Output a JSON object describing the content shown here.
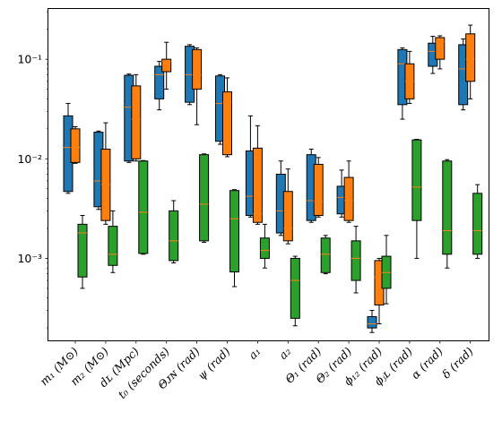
{
  "chart_data": {
    "type": "boxplot",
    "y_scale": "log",
    "ylim": [
      0.00015,
      0.32
    ],
    "y_ticks": [
      {
        "value": 0.001,
        "label": "10⁻³"
      },
      {
        "value": 0.01,
        "label": "10⁻²"
      },
      {
        "value": 0.1,
        "label": "10⁻¹"
      }
    ],
    "categories": [
      "m₁ (M⊙)",
      "m₂ (M⊙)",
      "dʟ (Mpc)",
      "t₀ (seconds)",
      "Θᴊɴ (rad)",
      "ψ (rad)",
      "a₁",
      "a₂",
      "Θ₁ (rad)",
      "Θ₂ (rad)",
      "ϕ₁₂ (rad)",
      "ϕⱼʟ (rad)",
      "α (rad)",
      "δ (rad)"
    ],
    "series": [
      {
        "color": "#1f77b4",
        "boxes": [
          {
            "whislo": 0.0045,
            "q1": 0.0047,
            "med": 0.013,
            "q3": 0.027,
            "whishi": 0.036
          },
          {
            "whislo": 0.0031,
            "q1": 0.0033,
            "med": 0.006,
            "q3": 0.0185,
            "whishi": 0.019
          },
          {
            "whislo": 0.0092,
            "q1": 0.0095,
            "med": 0.033,
            "q3": 0.069,
            "whishi": 0.071
          },
          {
            "whislo": 0.031,
            "q1": 0.04,
            "med": 0.07,
            "q3": 0.085,
            "whishi": 0.095
          },
          {
            "whislo": 0.035,
            "q1": 0.037,
            "med": 0.07,
            "q3": 0.135,
            "whishi": 0.14
          },
          {
            "whislo": 0.014,
            "q1": 0.015,
            "med": 0.036,
            "q3": 0.068,
            "whishi": 0.07
          },
          {
            "whislo": 0.0026,
            "q1": 0.0027,
            "med": 0.0042,
            "q3": 0.012,
            "whishi": 0.027
          },
          {
            "whislo": 0.0017,
            "q1": 0.0018,
            "med": 0.003,
            "q3": 0.007,
            "whishi": 0.0095
          },
          {
            "whislo": 0.0023,
            "q1": 0.0024,
            "med": 0.0038,
            "q3": 0.011,
            "whishi": 0.0125
          },
          {
            "whislo": 0.0026,
            "q1": 0.0028,
            "med": 0.0041,
            "q3": 0.0053,
            "whishi": 0.0077
          },
          {
            "whislo": 0.00018,
            "q1": 0.0002,
            "med": 0.00022,
            "q3": 0.00026,
            "whishi": 0.0003
          },
          {
            "whislo": 0.025,
            "q1": 0.035,
            "med": 0.09,
            "q3": 0.125,
            "whishi": 0.13
          },
          {
            "whislo": 0.072,
            "q1": 0.085,
            "med": 0.12,
            "q3": 0.145,
            "whishi": 0.17
          },
          {
            "whislo": 0.031,
            "q1": 0.035,
            "med": 0.08,
            "q3": 0.14,
            "whishi": 0.16
          }
        ]
      },
      {
        "color": "#ff7f0e",
        "boxes": [
          {
            "whislo": 0.009,
            "q1": 0.0092,
            "med": 0.013,
            "q3": 0.02,
            "whishi": 0.021
          },
          {
            "whislo": 0.0022,
            "q1": 0.0024,
            "med": 0.0055,
            "q3": 0.0125,
            "whishi": 0.023
          },
          {
            "whislo": 0.0095,
            "q1": 0.01,
            "med": 0.025,
            "q3": 0.054,
            "whishi": 0.07
          },
          {
            "whislo": 0.05,
            "q1": 0.075,
            "med": 0.095,
            "q3": 0.1,
            "whishi": 0.148
          },
          {
            "whislo": 0.022,
            "q1": 0.05,
            "med": 0.07,
            "q3": 0.125,
            "whishi": 0.13
          },
          {
            "whislo": 0.0105,
            "q1": 0.011,
            "med": 0.037,
            "q3": 0.047,
            "whishi": 0.065
          },
          {
            "whislo": 0.0022,
            "q1": 0.0023,
            "med": 0.0028,
            "q3": 0.0128,
            "whishi": 0.0215
          },
          {
            "whislo": 0.0014,
            "q1": 0.0015,
            "med": 0.002,
            "q3": 0.0047,
            "whishi": 0.0079
          },
          {
            "whislo": 0.0026,
            "q1": 0.0027,
            "med": 0.0037,
            "q3": 0.0088,
            "whishi": 0.0103
          },
          {
            "whislo": 0.0023,
            "q1": 0.0024,
            "med": 0.0038,
            "q3": 0.0065,
            "whishi": 0.0095
          },
          {
            "whislo": 0.00022,
            "q1": 0.00034,
            "med": 0.00065,
            "q3": 0.00095,
            "whishi": 0.001
          },
          {
            "whislo": 0.036,
            "q1": 0.04,
            "med": 0.06,
            "q3": 0.09,
            "whishi": 0.12
          },
          {
            "whislo": 0.08,
            "q1": 0.1,
            "med": 0.15,
            "q3": 0.165,
            "whishi": 0.172
          },
          {
            "whislo": 0.04,
            "q1": 0.06,
            "med": 0.1,
            "q3": 0.18,
            "whishi": 0.22
          }
        ]
      },
      {
        "color": "#2ca02c",
        "boxes": [
          {
            "whislo": 0.0005,
            "q1": 0.00065,
            "med": 0.0018,
            "q3": 0.0022,
            "whishi": 0.0027
          },
          {
            "whislo": 0.00072,
            "q1": 0.00085,
            "med": 0.0011,
            "q3": 0.0021,
            "whishi": 0.003
          },
          {
            "whislo": 0.0011,
            "q1": 0.00112,
            "med": 0.0029,
            "q3": 0.0095,
            "whishi": 0.0096
          },
          {
            "whislo": 0.0009,
            "q1": 0.00095,
            "med": 0.0015,
            "q3": 0.003,
            "whishi": 0.0038
          },
          {
            "whislo": 0.00145,
            "q1": 0.0015,
            "med": 0.0035,
            "q3": 0.011,
            "whishi": 0.0112
          },
          {
            "whislo": 0.00052,
            "q1": 0.00073,
            "med": 0.0025,
            "q3": 0.0048,
            "whishi": 0.0049
          },
          {
            "whislo": 0.0008,
            "q1": 0.001,
            "med": 0.0012,
            "q3": 0.0016,
            "whishi": 0.0022
          },
          {
            "whislo": 0.00021,
            "q1": 0.00025,
            "med": 0.0006,
            "q3": 0.001,
            "whishi": 0.00105
          },
          {
            "whislo": 0.0007,
            "q1": 0.00072,
            "med": 0.0011,
            "q3": 0.0016,
            "whishi": 0.0017
          },
          {
            "whislo": 0.00045,
            "q1": 0.0006,
            "med": 0.001,
            "q3": 0.0015,
            "whishi": 0.0021
          },
          {
            "whislo": 0.00035,
            "q1": 0.0005,
            "med": 0.00072,
            "q3": 0.00105,
            "whishi": 0.0017
          },
          {
            "whislo": 0.001,
            "q1": 0.0024,
            "med": 0.0052,
            "q3": 0.0155,
            "whishi": 0.0157
          },
          {
            "whislo": 0.0008,
            "q1": 0.0011,
            "med": 0.0019,
            "q3": 0.0095,
            "whishi": 0.0098
          },
          {
            "whislo": 0.001,
            "q1": 0.0011,
            "med": 0.0019,
            "q3": 0.0045,
            "whishi": 0.0055
          }
        ]
      }
    ],
    "median_color": "#ff7f0e",
    "grid": false,
    "legend": "none"
  }
}
